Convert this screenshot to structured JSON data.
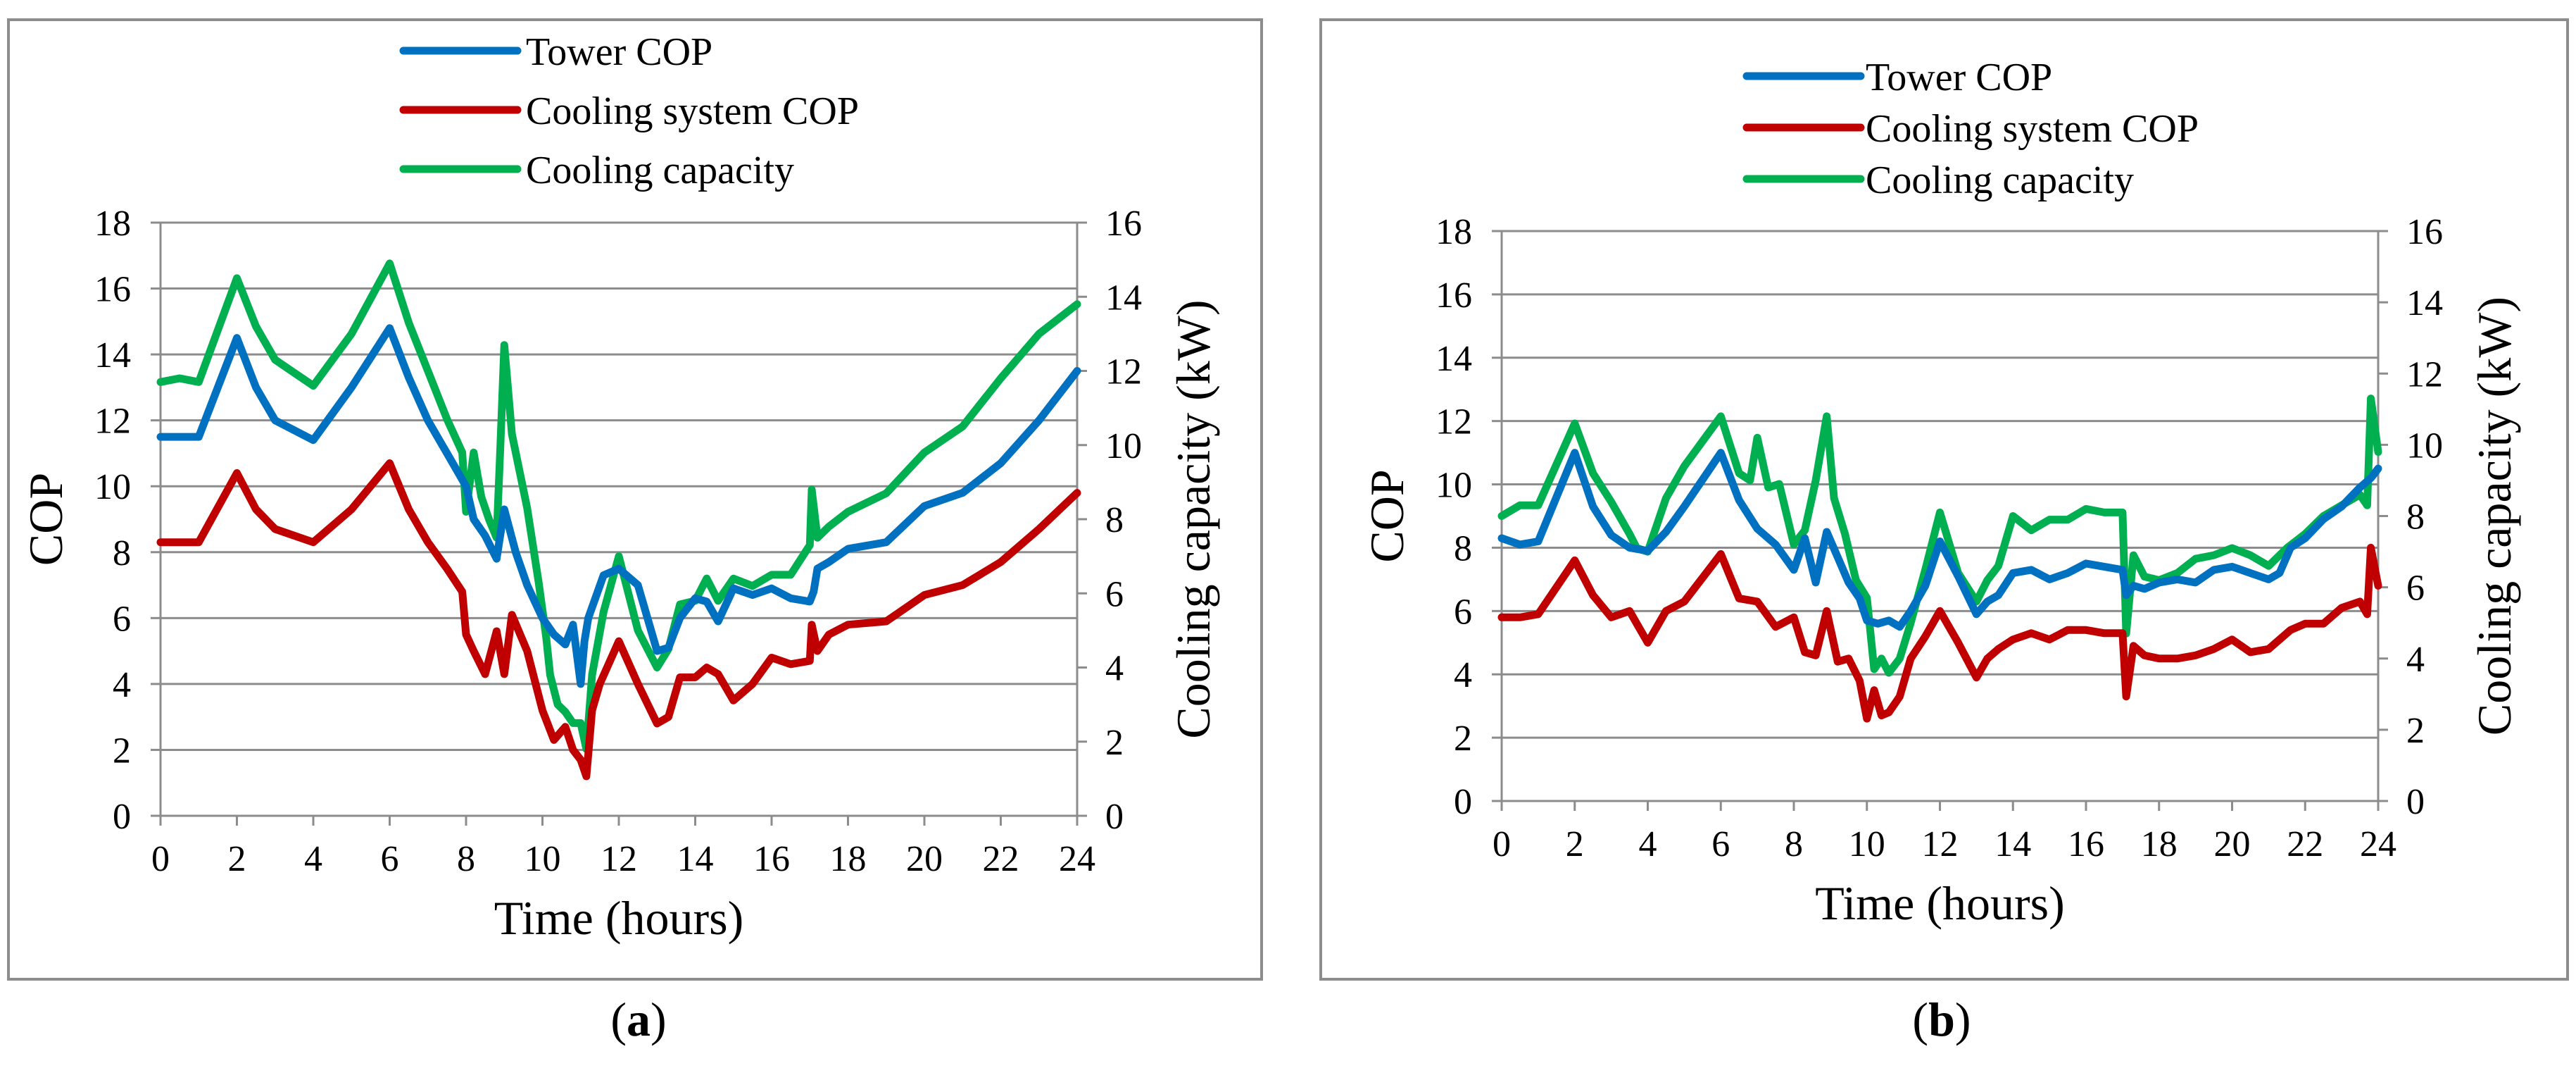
{
  "chart_data": [
    {
      "type": "line",
      "panel_label": "a",
      "xlabel": "Time (hours)",
      "ylabel": "COP",
      "y2label": "Cooling capacity (kW)",
      "xlim": [
        0,
        24
      ],
      "ylim": [
        0,
        18
      ],
      "y2lim": [
        0,
        16
      ],
      "xticks": [
        "0",
        "2",
        "4",
        "6",
        "8",
        "10",
        "12",
        "14",
        "16",
        "18",
        "20",
        "22",
        "24"
      ],
      "yticks": [
        "0",
        "2",
        "4",
        "6",
        "8",
        "10",
        "12",
        "14",
        "16",
        "18"
      ],
      "y2ticks": [
        "0",
        "2",
        "4",
        "6",
        "8",
        "10",
        "12",
        "14",
        "16"
      ],
      "legend": [
        "Tower COP",
        "Cooling system COP",
        "Cooling capacity"
      ],
      "series": [
        {
          "name": "Tower COP",
          "axis": "left",
          "color": "#0070C0",
          "x": [
            0,
            1,
            2,
            2.5,
            3,
            4,
            5,
            6,
            6.5,
            7,
            7.5,
            8,
            8.2,
            8.5,
            8.8,
            9,
            9.3,
            9.6,
            10,
            10.3,
            10.6,
            10.8,
            11,
            11.1,
            11.2,
            11.6,
            12,
            12.5,
            13,
            13.3,
            13.6,
            14,
            14.3,
            14.6,
            15,
            15.5,
            16,
            16.5,
            17,
            17.1,
            17.2,
            17.5,
            18,
            19,
            20,
            21,
            22,
            23,
            24
          ],
          "values": [
            11.5,
            11.5,
            14.5,
            13,
            12,
            11.4,
            13,
            14.8,
            13.3,
            12,
            11,
            10,
            9,
            8.5,
            7.8,
            9.3,
            8,
            7,
            6,
            5.5,
            5.2,
            5.8,
            4,
            5.3,
            6,
            7.3,
            7.5,
            7,
            5,
            5.1,
            6,
            6.6,
            6.5,
            5.9,
            6.9,
            6.7,
            6.9,
            6.6,
            6.5,
            6.8,
            7.5,
            7.7,
            8.1,
            8.3,
            9.4,
            9.8,
            10.7,
            12,
            13.5
          ]
        },
        {
          "name": "Cooling system COP",
          "axis": "left",
          "color": "#C00000",
          "x": [
            0,
            0.5,
            1,
            2,
            2.5,
            3,
            4,
            5,
            6,
            6.5,
            7,
            7.5,
            7.9,
            8,
            8.2,
            8.5,
            8.8,
            9,
            9.2,
            9.6,
            10,
            10.3,
            10.6,
            10.8,
            11,
            11.15,
            11.3,
            11.5,
            12,
            12.5,
            13,
            13.3,
            13.6,
            14,
            14.3,
            14.6,
            15,
            15.5,
            16,
            16.5,
            17,
            17.05,
            17.2,
            17.5,
            18,
            19,
            20,
            21,
            22,
            23,
            24
          ],
          "values": [
            8.3,
            8.3,
            8.3,
            10.4,
            9.3,
            8.7,
            8.3,
            9.3,
            10.7,
            9.3,
            8.3,
            7.5,
            6.8,
            5.5,
            5,
            4.3,
            5.6,
            4.3,
            6.1,
            5,
            3.2,
            2.3,
            2.7,
            2,
            1.7,
            1.2,
            3.2,
            4,
            5.3,
            4,
            2.8,
            3,
            4.2,
            4.2,
            4.5,
            4.3,
            3.5,
            4,
            4.8,
            4.6,
            4.7,
            5.8,
            5,
            5.5,
            5.8,
            5.9,
            6.7,
            7,
            7.7,
            8.7,
            9.8
          ]
        },
        {
          "name": "Cooling capacity",
          "axis": "right",
          "color": "#00B050",
          "x": [
            0,
            0.5,
            1,
            2,
            2.5,
            3,
            4,
            5,
            6,
            6.5,
            7,
            7.5,
            7.9,
            8,
            8.2,
            8.4,
            8.6,
            8.8,
            8.9,
            9,
            9.2,
            9.6,
            9.9,
            10.1,
            10.2,
            10.4,
            10.6,
            10.8,
            11,
            11.15,
            11.3,
            11.6,
            12,
            12.5,
            13,
            13.3,
            13.6,
            14,
            14.3,
            14.6,
            15,
            15.5,
            16,
            16.5,
            17,
            17.05,
            17.2,
            17.5,
            18,
            19,
            20,
            21,
            22,
            23,
            24
          ],
          "values": [
            11.7,
            11.8,
            11.7,
            14.5,
            13.2,
            12.3,
            11.6,
            13,
            14.9,
            13.3,
            12,
            10.7,
            9.8,
            8.2,
            9.8,
            8.6,
            8,
            7.5,
            10,
            12.7,
            10.3,
            8.3,
            6.3,
            4.8,
            3.8,
            3,
            2.8,
            2.5,
            2.5,
            1.8,
            3.8,
            5.5,
            7,
            5,
            4,
            4.5,
            5.7,
            5.8,
            6.4,
            5.8,
            6.4,
            6.2,
            6.5,
            6.5,
            7.3,
            8.8,
            7.5,
            7.8,
            8.2,
            8.7,
            9.8,
            10.5,
            11.8,
            13,
            13.8
          ]
        }
      ]
    },
    {
      "type": "line",
      "panel_label": "b",
      "xlabel": "Time (hours)",
      "ylabel": "COP",
      "y2label": "Cooling capacity (kW)",
      "xlim": [
        0,
        24
      ],
      "ylim": [
        0,
        18
      ],
      "y2lim": [
        0,
        16
      ],
      "xticks": [
        "0",
        "2",
        "4",
        "6",
        "8",
        "10",
        "12",
        "14",
        "16",
        "18",
        "20",
        "22",
        "24"
      ],
      "yticks": [
        "0",
        "2",
        "4",
        "6",
        "8",
        "10",
        "12",
        "14",
        "16",
        "18"
      ],
      "y2ticks": [
        "0",
        "2",
        "4",
        "6",
        "8",
        "10",
        "12",
        "14",
        "16"
      ],
      "legend": [
        "Tower COP",
        "Cooling system COP",
        "Cooling capacity"
      ],
      "series": [
        {
          "name": "Tower COP",
          "axis": "left",
          "color": "#0070C0",
          "x": [
            0,
            0.5,
            1,
            2,
            2.5,
            3,
            3.5,
            4,
            4.5,
            5,
            6,
            6.5,
            7,
            7.5,
            8,
            8.3,
            8.6,
            8.9,
            9.2,
            9.5,
            9.8,
            10,
            10.3,
            10.6,
            10.9,
            11.2,
            11.6,
            12,
            12.5,
            13,
            13.3,
            13.6,
            14,
            14.5,
            15,
            15.5,
            16,
            16.5,
            17,
            17.1,
            17.3,
            17.6,
            18,
            18.5,
            19,
            19.5,
            20,
            20.5,
            21,
            21.3,
            21.6,
            22,
            22.5,
            23,
            23.5,
            23.8,
            24
          ],
          "values": [
            8.3,
            8.1,
            8.2,
            11,
            9.3,
            8.4,
            8,
            7.9,
            8.5,
            9.3,
            11,
            9.5,
            8.6,
            8.1,
            7.3,
            8.3,
            6.9,
            8.5,
            7.7,
            6.9,
            6.4,
            5.7,
            5.6,
            5.7,
            5.5,
            6,
            6.8,
            8.2,
            7.1,
            5.9,
            6.3,
            6.5,
            7.2,
            7.3,
            7,
            7.2,
            7.5,
            7.4,
            7.3,
            6.5,
            6.8,
            6.7,
            6.9,
            7,
            6.9,
            7.3,
            7.4,
            7.2,
            7,
            7.2,
            8,
            8.3,
            8.9,
            9.3,
            9.9,
            10.2,
            10.5
          ]
        },
        {
          "name": "Cooling system COP",
          "axis": "left",
          "color": "#C00000",
          "x": [
            0,
            0.5,
            1,
            2,
            2.5,
            3,
            3.5,
            4,
            4.5,
            5,
            6,
            6.5,
            7,
            7.5,
            8,
            8.3,
            8.6,
            8.9,
            9.2,
            9.5,
            9.8,
            10,
            10.2,
            10.4,
            10.6,
            10.9,
            11.2,
            11.6,
            12,
            12.5,
            13,
            13.3,
            13.6,
            14,
            14.5,
            15,
            15.5,
            16,
            16.5,
            17,
            17.1,
            17.3,
            17.6,
            18,
            18.5,
            19,
            19.5,
            20,
            20.5,
            21,
            21.3,
            21.6,
            22,
            22.5,
            23,
            23.5,
            23.7,
            23.8,
            24
          ],
          "values": [
            5.8,
            5.8,
            5.9,
            7.6,
            6.5,
            5.8,
            6,
            5,
            6,
            6.3,
            7.8,
            6.4,
            6.3,
            5.5,
            5.8,
            4.7,
            4.6,
            6,
            4.4,
            4.5,
            3.8,
            2.6,
            3.5,
            2.7,
            2.8,
            3.3,
            4.5,
            5.2,
            6,
            5,
            3.9,
            4.5,
            4.8,
            5.1,
            5.3,
            5.1,
            5.4,
            5.4,
            5.3,
            5.3,
            3.3,
            4.9,
            4.6,
            4.5,
            4.5,
            4.6,
            4.8,
            5.1,
            4.7,
            4.8,
            5.1,
            5.4,
            5.6,
            5.6,
            6.1,
            6.3,
            5.9,
            8,
            6.8
          ]
        },
        {
          "name": "Cooling capacity",
          "axis": "right",
          "color": "#00B050",
          "x": [
            0,
            0.5,
            1,
            2,
            2.5,
            3,
            3.5,
            3.7,
            4,
            4.5,
            5,
            6,
            6.5,
            6.8,
            7,
            7.3,
            7.6,
            8,
            8.3,
            8.6,
            8.9,
            9.1,
            9.4,
            9.7,
            10,
            10.2,
            10.4,
            10.6,
            10.9,
            11.2,
            11.6,
            12,
            12.5,
            13,
            13.3,
            13.6,
            14,
            14.5,
            15,
            15.5,
            16,
            16.5,
            17,
            17.1,
            17.3,
            17.6,
            18,
            18.5,
            19,
            19.5,
            20,
            20.5,
            21,
            21.5,
            22,
            22.5,
            23,
            23.5,
            23.7,
            23.8,
            24
          ],
          "values": [
            8,
            8.3,
            8.3,
            10.6,
            9.2,
            8.4,
            7.5,
            7.1,
            7,
            8.5,
            9.4,
            10.8,
            9.2,
            9,
            10.2,
            8.8,
            8.9,
            7.2,
            7.6,
            9,
            10.8,
            8.5,
            7.5,
            6.2,
            5.7,
            3.7,
            4,
            3.6,
            4,
            5,
            6.5,
            8.1,
            6.4,
            5.6,
            6.2,
            6.6,
            8,
            7.6,
            7.9,
            7.9,
            8.2,
            8.1,
            8.1,
            4.7,
            6.9,
            6.3,
            6.2,
            6.4,
            6.8,
            6.9,
            7.1,
            6.9,
            6.6,
            7.1,
            7.5,
            8,
            8.3,
            8.6,
            8.3,
            11.3,
            9.8
          ]
        }
      ]
    }
  ]
}
